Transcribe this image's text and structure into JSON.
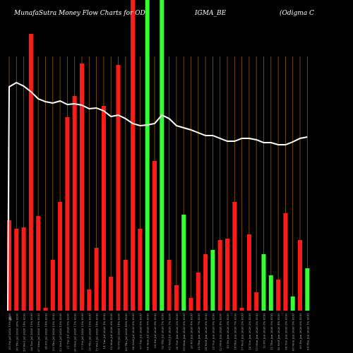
{
  "title": {
    "part1": "MunafaSutra  Money Flow  Charts for OD",
    "part2": "IGMA_BE",
    "part3": "(Odigma  C"
  },
  "footer_mark": "S",
  "colors": {
    "background": "#000000",
    "up": "#33ff33",
    "down": "#ff1a1a",
    "grid": "#8a5a00",
    "price_line": "#ffffff"
  },
  "chart_data": {
    "type": "bar",
    "title": "MunafaSutra  Money Flow  Charts for ODIGMA_BE (Odigma  C",
    "ylim": [
      0,
      440
    ],
    "categories": [
      "01 Fri Jul 2026 15% EOD",
      "30 Thu Jul 2026 20% EOD",
      "29 Wed Jul 2026 14% EOD",
      "28 Tue Jul 2026 11% EOD",
      "27 Mon Jul 2026 19% EOD",
      "24 Fri Jul 2026 14% EOD",
      "23 Thu Jul 2026 13% EOD",
      "22 Wed Jul 2026 13% EOD",
      "21 Tue Jul 2026 0% EOD",
      "20 Mon Jul 2026 11% EOD",
      "17 Fri Jul 2026 12% EOD",
      "16 Thu Jul 2026 15% EOD",
      "15 Wed Jul 2026 14% EOD",
      "14 Tue Jul 2026 1% EOD",
      "13 Mon Jul 2026 8% EOD",
      "10 Fri Jul 2026 14% EOD",
      "09 Thu Jul 2026 10% EOD",
      "08 Wed Jul 2026 8% EOD",
      "07 Tue Jul 2026 8% EOD",
      "06 Mon Jul 2026 5% EOD",
      "03 Fri Jul 2026 9% EOD",
      "02 Thu Jul 2026 1% EOD",
      "01 Wed Jul 2026 1% EOD",
      "30 Tue Jun 2026 2% EOD",
      "29 Mon Jun 2026 6% EOD",
      "26 Fri Jun 2026 4% EOD",
      "25 Thu Jun 2026 7% EOD",
      "24 Wed Jun 2026 6% EOD",
      "23 Tue Jun 2026 5% EOD",
      "22 Mon Jun 2026 4% EOD",
      "19 Fri Jun 2026 3% EOD",
      "18 Thu Jun 2026 7% EOD",
      "17 Wed Jun 2026 2% EOD",
      "16 Tue Jun 2026 2% EOD",
      "15 Mon Jun 2026 2% EOD",
      "12 Fri Jun 2026 3% EOD",
      "11 Thu Jun 2026 5% EOD",
      "10 Wed Jun 2026 4% EOD",
      "09 Tue Jun 2026 2% EOD",
      "08 Mon Jun 2026 5% EOD",
      "05 Fri Jun 2026 0% EOD",
      "04 Thu Jun 2026 1% EOD"
    ],
    "volumes": [
      128,
      116,
      118,
      392,
      134,
      4,
      72,
      154,
      274,
      304,
      350,
      30,
      89,
      290,
      48,
      348,
      72,
      460,
      116,
      460,
      212,
      460,
      72,
      36,
      136,
      18,
      54,
      80,
      86,
      100,
      102,
      154,
      4,
      108,
      26,
      80,
      50,
      44,
      138,
      20,
      100,
      60
    ],
    "directions": [
      "down",
      "down",
      "down",
      "down",
      "down",
      "down",
      "down",
      "down",
      "down",
      "down",
      "down",
      "down",
      "down",
      "down",
      "down",
      "down",
      "down",
      "down",
      "down",
      "up",
      "down",
      "up",
      "down",
      "down",
      "up",
      "down",
      "down",
      "down",
      "up",
      "down",
      "down",
      "down",
      "down",
      "down",
      "down",
      "up",
      "up",
      "down",
      "down",
      "up",
      "down",
      "up"
    ],
    "price": [
      317,
      323,
      318,
      310,
      300,
      296,
      294,
      297,
      292,
      293,
      291,
      286,
      287,
      283,
      275,
      277,
      272,
      265,
      262,
      263,
      265,
      277,
      272,
      262,
      259,
      256,
      252,
      248,
      248,
      244,
      240,
      240,
      244,
      244,
      242,
      238,
      238,
      235,
      235,
      239,
      244,
      246
    ]
  }
}
